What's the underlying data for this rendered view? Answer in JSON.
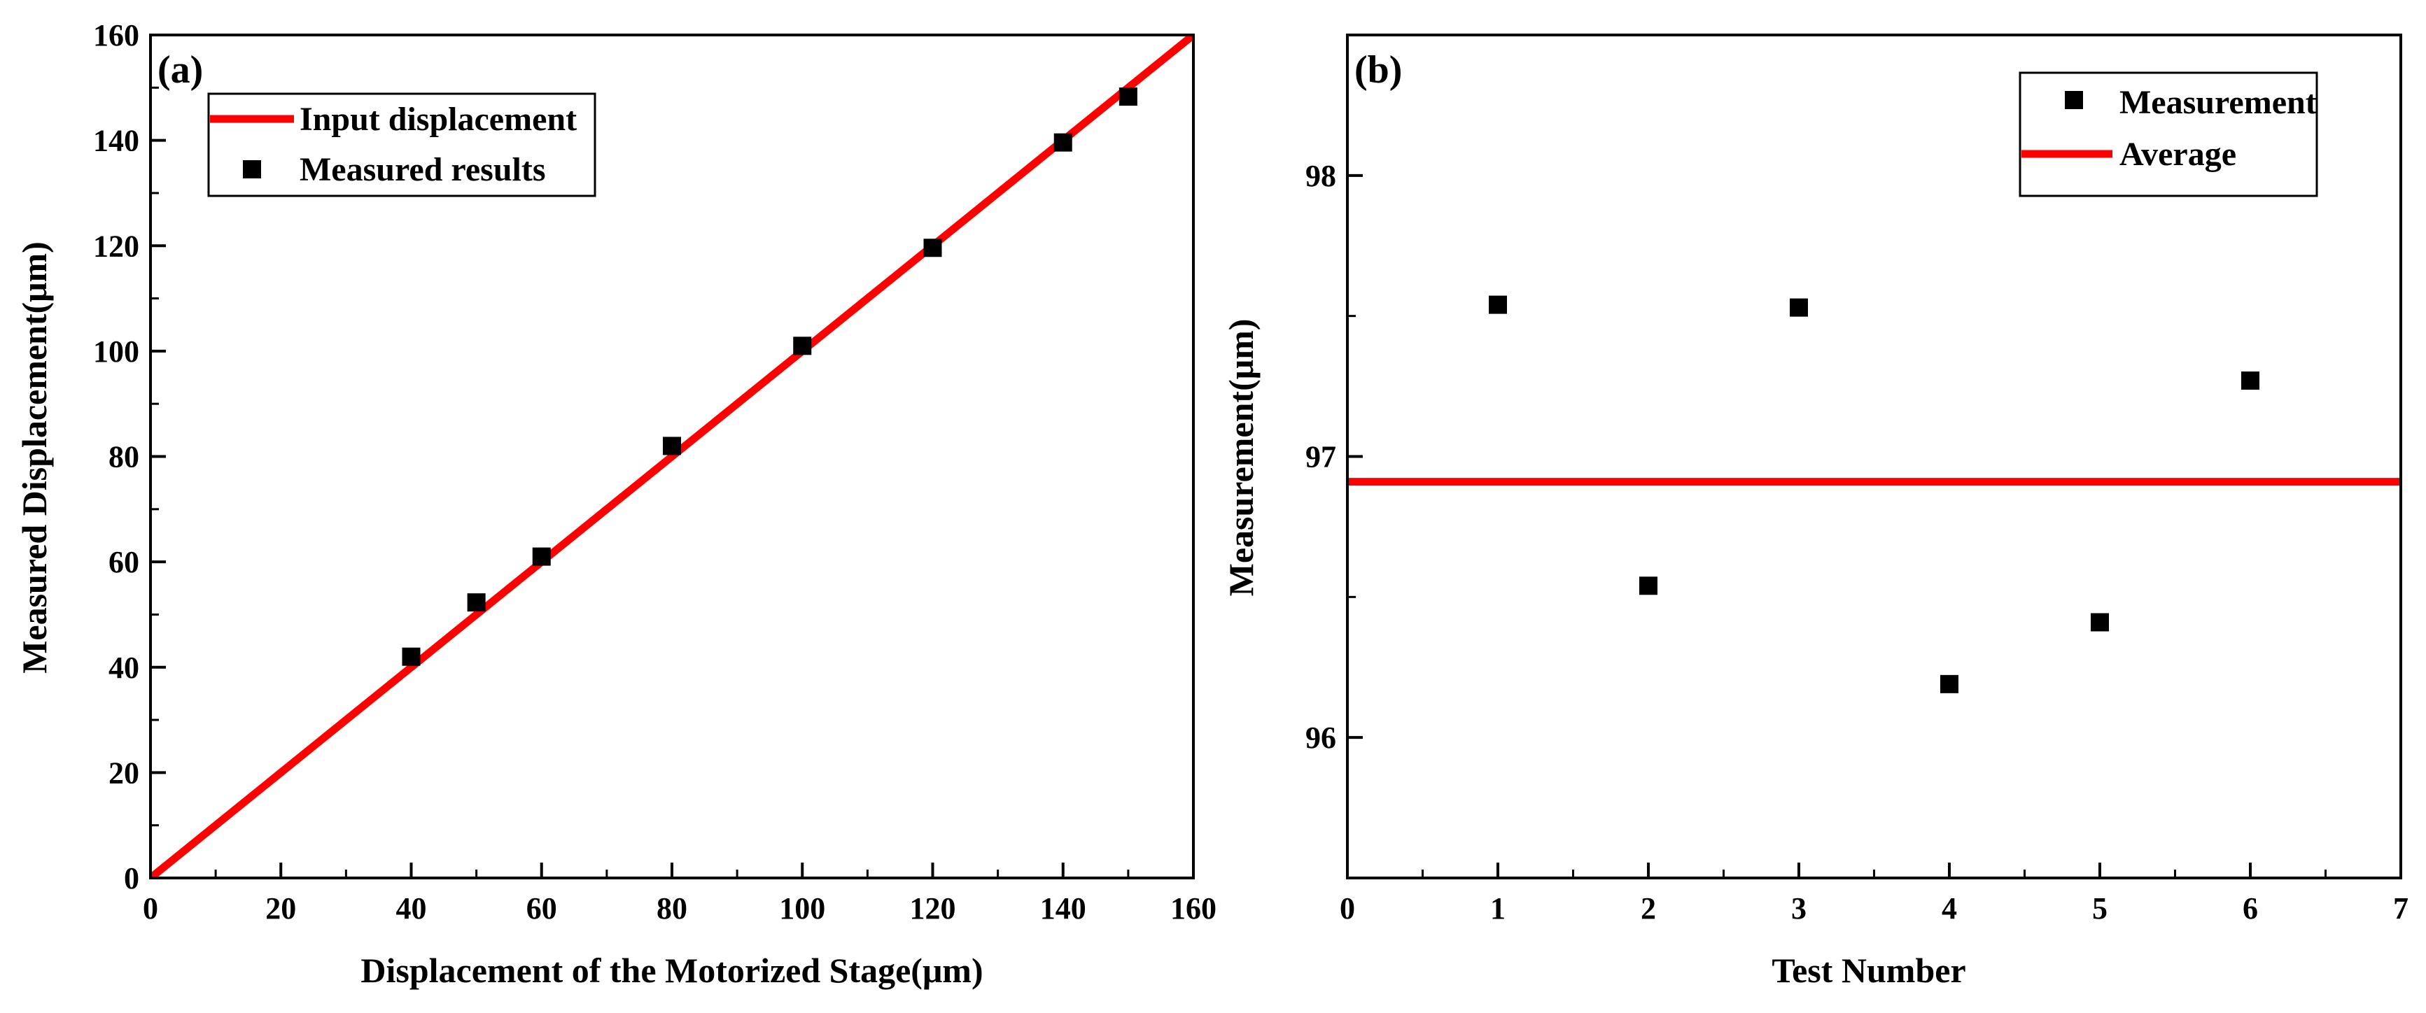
{
  "colors": {
    "line": "#ff0000",
    "marker": "#000000",
    "axis": "#000000",
    "background": "#ffffff"
  },
  "chart_data": [
    {
      "panel_label": "(a)",
      "type": "scatter",
      "xlabel": "Displacement of the Motorized Stage(μm)",
      "ylabel": "Measured Displacement(μm)",
      "xlim": [
        0,
        160
      ],
      "ylim": [
        0,
        160
      ],
      "xticks": [
        0,
        20,
        40,
        60,
        80,
        100,
        120,
        140,
        160
      ],
      "yticks": [
        0,
        20,
        40,
        60,
        80,
        100,
        120,
        140,
        160
      ],
      "xticks_minor": [
        10,
        30,
        50,
        70,
        90,
        110,
        130,
        150
      ],
      "yticks_minor": [
        10,
        30,
        50,
        70,
        90,
        110,
        130,
        150
      ],
      "grid": false,
      "legend_position": "top-left",
      "series": [
        {
          "name": "Input displacement",
          "kind": "line",
          "color": "#ff0000",
          "x": [
            0,
            160
          ],
          "y": [
            0,
            160
          ]
        },
        {
          "name": "Measured results",
          "kind": "square-marker",
          "color": "#000000",
          "x": [
            40,
            50,
            60,
            80,
            100,
            120,
            140,
            150
          ],
          "y": [
            42,
            52.3,
            61,
            82,
            101,
            119.6,
            139.6,
            148.3
          ]
        }
      ]
    },
    {
      "panel_label": "(b)",
      "type": "scatter",
      "xlabel": "Test Number",
      "ylabel": "Measurement(μm)",
      "xlim": [
        0,
        7
      ],
      "ylim": [
        95.5,
        98.5
      ],
      "xticks": [
        0,
        1,
        2,
        3,
        4,
        5,
        6,
        7
      ],
      "yticks": [
        96,
        97,
        98
      ],
      "xticks_minor": [
        0.5,
        1.5,
        2.5,
        3.5,
        4.5,
        5.5,
        6.5
      ],
      "yticks_minor": [
        95.5,
        96.5,
        97.5,
        98.5
      ],
      "grid": false,
      "legend_position": "top-right",
      "series": [
        {
          "name": "Measurement",
          "kind": "square-marker",
          "color": "#000000",
          "x": [
            1,
            2,
            3,
            4,
            5,
            6
          ],
          "y": [
            97.54,
            96.54,
            97.53,
            96.19,
            96.41,
            97.27
          ]
        },
        {
          "name": "Average",
          "kind": "hline",
          "color": "#ff0000",
          "y": 96.91
        }
      ]
    }
  ]
}
